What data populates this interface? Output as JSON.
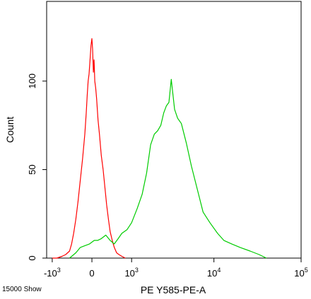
{
  "chart_data": {
    "type": "line",
    "title": "",
    "xlabel": "PE Y585-PE-A",
    "ylabel": "Count",
    "x_scale": "biexponential",
    "x_ticks": [
      {
        "value": -1000,
        "label": "-10",
        "sup": "3"
      },
      {
        "value": 0,
        "label": "0",
        "sup": ""
      },
      {
        "value": 1000,
        "label": "10",
        "sup": "3"
      },
      {
        "value": 10000,
        "label": "10",
        "sup": "4"
      },
      {
        "value": 100000,
        "label": "10",
        "sup": "5"
      }
    ],
    "y_ticks": [
      {
        "value": 0,
        "label": "0"
      },
      {
        "value": 50,
        "label": "50"
      },
      {
        "value": 100,
        "label": "100"
      }
    ],
    "ylim": [
      0,
      145
    ],
    "grid": false,
    "legend": "none",
    "corner_note": "15000 Show",
    "series": [
      {
        "color": "#ff0000",
        "x": [
          -1000,
          -850,
          -700,
          -600,
          -500,
          -450,
          -400,
          -350,
          -300,
          -250,
          -200,
          -150,
          -120,
          -100,
          -80,
          -60,
          -40,
          -20,
          0,
          15,
          30,
          45,
          60,
          80,
          100,
          130,
          160,
          200,
          240,
          280,
          320,
          360,
          400,
          450,
          500,
          560,
          620,
          700,
          800
        ],
        "values": [
          0,
          0,
          1,
          2,
          4,
          8,
          14,
          22,
          32,
          44,
          56,
          70,
          82,
          92,
          100,
          104,
          112,
          120,
          124,
          118,
          105,
          112,
          100,
          96,
          90,
          78,
          70,
          58,
          50,
          40,
          30,
          22,
          15,
          10,
          6,
          3,
          2,
          1,
          0
        ]
      },
      {
        "color": "#00cc00",
        "x": [
          -500,
          -350,
          -250,
          -150,
          -50,
          0,
          50,
          120,
          200,
          300,
          400,
          500,
          600,
          700,
          850,
          1000,
          1200,
          1400,
          1600,
          1800,
          2000,
          2200,
          2400,
          2600,
          2800,
          3000,
          3200,
          3500,
          3800,
          4200,
          4800,
          5500,
          6500,
          7500,
          9000,
          11000,
          13000,
          16000,
          20000,
          26000,
          33000,
          40000
        ],
        "values": [
          0,
          3,
          6,
          7,
          8,
          9,
          10,
          10,
          11,
          13,
          10,
          8,
          11,
          14,
          16,
          20,
          28,
          36,
          48,
          64,
          70,
          72,
          75,
          82,
          86,
          88,
          101,
          84,
          79,
          76,
          65,
          52,
          38,
          26,
          20,
          14,
          10,
          8,
          6,
          4,
          2,
          0
        ]
      }
    ]
  }
}
